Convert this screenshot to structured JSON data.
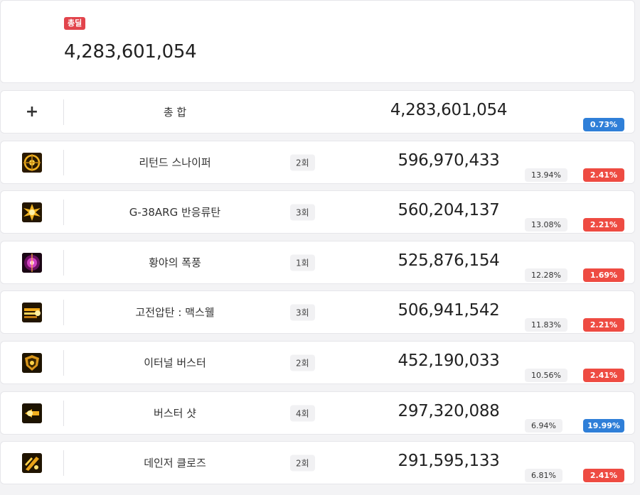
{
  "summary": {
    "badge": "총딜",
    "total": "4,283,601,054"
  },
  "total_row": {
    "name": "총 합",
    "damage": "4,283,601,054",
    "pct": "0.73%",
    "pct_color": "#2f7fd8"
  },
  "skills": [
    {
      "icon": "target-crosshair-icon",
      "name": "리턴드 스나이퍼",
      "count": "2회",
      "damage": "596,970,433",
      "share": "13.94%",
      "pct": "2.41%",
      "pct_type": "red"
    },
    {
      "icon": "burst-explosion-icon",
      "name": "G-38ARG 반응류탄",
      "count": "3회",
      "damage": "560,204,137",
      "share": "13.08%",
      "pct": "2.21%",
      "pct_type": "red"
    },
    {
      "icon": "purple-storm-icon",
      "name": "황야의 폭풍",
      "count": "1회",
      "damage": "525,876,154",
      "share": "12.28%",
      "pct": "1.69%",
      "pct_type": "red"
    },
    {
      "icon": "beam-shot-icon",
      "name": "고전압탄 : 맥스웰",
      "count": "3회",
      "damage": "506,941,542",
      "share": "11.83%",
      "pct": "2.21%",
      "pct_type": "red"
    },
    {
      "icon": "golden-shield-icon",
      "name": "이터널 버스터",
      "count": "2회",
      "damage": "452,190,033",
      "share": "10.56%",
      "pct": "2.41%",
      "pct_type": "red"
    },
    {
      "icon": "bullet-shot-icon",
      "name": "버스터 샷",
      "count": "4회",
      "damage": "297,320,088",
      "share": "6.94%",
      "pct": "19.99%",
      "pct_type": "blue"
    },
    {
      "icon": "slash-claw-icon",
      "name": "데인저 클로즈",
      "count": "2회",
      "damage": "291,595,133",
      "share": "6.81%",
      "pct": "2.41%",
      "pct_type": "red"
    }
  ]
}
